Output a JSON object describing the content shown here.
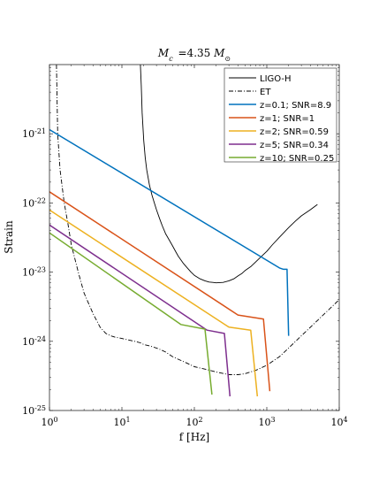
{
  "chart_data": {
    "type": "line",
    "title": "M_c = 4.35 M_⊙",
    "xlabel": "f [Hz]",
    "ylabel": "Strain",
    "xscale": "log",
    "yscale": "log",
    "xlim": [
      1,
      10000
    ],
    "ylim": [
      1e-25,
      1e-20
    ],
    "grid": false,
    "legend_position": "top-right",
    "x_ticks": [
      1,
      10,
      100,
      1000,
      10000
    ],
    "x_tick_labels": [
      "10^0",
      "10^1",
      "10^2",
      "10^3",
      "10^4"
    ],
    "y_ticks": [
      1e-25,
      1e-24,
      1e-23,
      1e-22,
      1e-21
    ],
    "y_tick_labels": [
      "10^-25",
      "10^-24",
      "10^-23",
      "10^-22",
      "10^-21"
    ],
    "series": [
      {
        "name": "LIGO-H",
        "color": "#000000",
        "style": "solid",
        "x": [
          18,
          18.5,
          19,
          20,
          21,
          22,
          24,
          26,
          28,
          30,
          33,
          36,
          40,
          45,
          50,
          55,
          60,
          70,
          80,
          90,
          100,
          120,
          140,
          160,
          180,
          200,
          250,
          300,
          350,
          400,
          450,
          500,
          600,
          700,
          800,
          1000,
          1200,
          1500,
          2000,
          2500,
          3000,
          4000,
          5000
        ],
        "y": [
          1e-20,
          5e-21,
          2e-21,
          8e-22,
          4.5e-22,
          3e-22,
          1.8e-22,
          1.3e-22,
          1e-22,
          8e-23,
          6e-23,
          4.7e-23,
          3.6e-23,
          2.9e-23,
          2.4e-23,
          2e-23,
          1.7e-23,
          1.35e-23,
          1.15e-23,
          1e-23,
          9e-24,
          8e-24,
          7.5e-24,
          7.2e-24,
          7.1e-24,
          7e-24,
          7.1e-24,
          7.5e-24,
          8e-24,
          8.8e-24,
          9.5e-24,
          1.05e-23,
          1.2e-23,
          1.4e-23,
          1.6e-23,
          2e-23,
          2.5e-23,
          3.2e-23,
          4.4e-23,
          5.5e-23,
          6.5e-23,
          8e-23,
          9.5e-23
        ]
      },
      {
        "name": "ET",
        "color": "#000000",
        "style": "dashdot",
        "x": [
          1.25,
          1.3,
          1.4,
          1.6,
          1.8,
          2,
          2.5,
          3,
          4,
          5,
          6,
          7,
          8,
          10,
          12,
          15,
          18,
          20,
          25,
          30,
          35,
          40,
          50,
          60,
          80,
          100,
          150,
          200,
          300,
          400,
          500,
          700,
          1000,
          1500,
          2000,
          3000,
          5000,
          7000,
          10000
        ],
        "y": [
          1e-20,
          1e-21,
          3e-22,
          1e-22,
          5e-23,
          2.5e-23,
          1e-23,
          5e-24,
          2.5e-24,
          1.6e-24,
          1.3e-24,
          1.2e-24,
          1.15e-24,
          1.1e-24,
          1.05e-24,
          1e-24,
          9.5e-25,
          9e-25,
          8.5e-25,
          8e-25,
          7.5e-25,
          7e-25,
          6e-25,
          5.5e-25,
          4.8e-25,
          4.3e-25,
          3.9e-25,
          3.6e-25,
          3.3e-25,
          3.3e-25,
          3.4e-25,
          3.8e-25,
          4.5e-25,
          6e-25,
          8e-25,
          1.2e-24,
          2e-24,
          2.8e-24,
          4e-24
        ]
      },
      {
        "name": "z=0.1; SNR=8.9",
        "color": "#0072BD",
        "style": "solid",
        "x": [
          1,
          1500,
          1700,
          1900,
          2000
        ],
        "y": [
          1.15e-21,
          1.15e-23,
          1.1e-23,
          1.1e-23,
          1.2e-24
        ]
      },
      {
        "name": "z=1; SNR=1",
        "color": "#D95319",
        "style": "solid",
        "x": [
          1,
          400,
          900,
          1100
        ],
        "y": [
          1.45e-22,
          2.4e-24,
          2.1e-24,
          1.9e-25
        ]
      },
      {
        "name": "z=2; SNR=0.59",
        "color": "#EDB120",
        "style": "solid",
        "x": [
          1,
          300,
          600,
          740
        ],
        "y": [
          7.9e-23,
          1.6e-24,
          1.45e-24,
          1.6e-25
        ]
      },
      {
        "name": "z=5; SNR=0.34",
        "color": "#7E2F8E",
        "style": "solid",
        "x": [
          1,
          150,
          260,
          310
        ],
        "y": [
          4.8e-23,
          1.45e-24,
          1.3e-24,
          1.6e-25
        ]
      },
      {
        "name": "z=10; SNR=0.25",
        "color": "#77AC30",
        "style": "solid",
        "x": [
          1,
          65,
          140,
          175
        ],
        "y": [
          3.7e-23,
          1.75e-24,
          1.5e-24,
          1.7e-25
        ]
      }
    ]
  }
}
